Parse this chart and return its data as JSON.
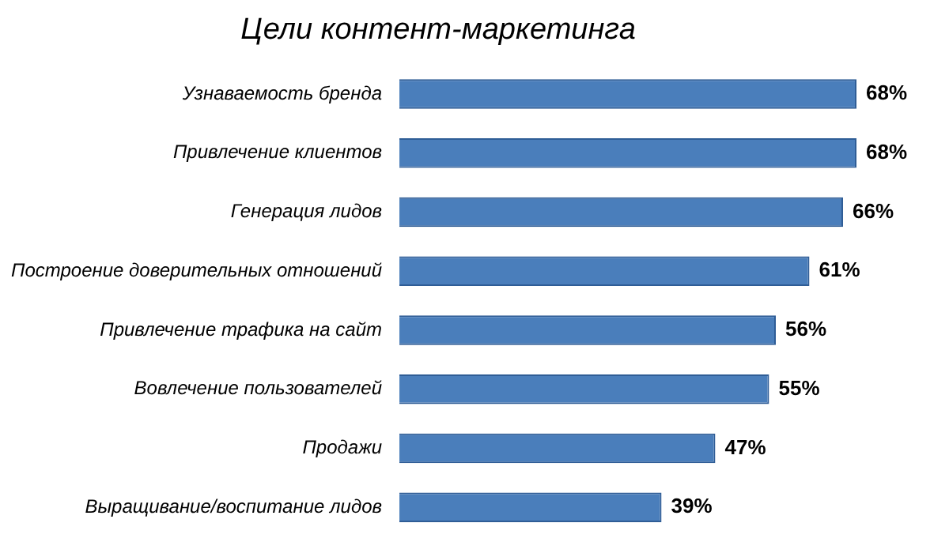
{
  "chart_data": {
    "type": "bar",
    "orientation": "horizontal",
    "title": "Цели контент-маркетинга",
    "categories": [
      "Узнаваемость бренда",
      "Привлечение клиентов",
      "Генерация лидов",
      "Построение доверительных отношений",
      "Привлечение трафика на сайт",
      "Вовлечение пользователей",
      "Продажи",
      "Выращивание/воспитание лидов"
    ],
    "values": [
      68,
      68,
      66,
      61,
      56,
      55,
      47,
      39
    ],
    "value_labels": [
      "68%",
      "68%",
      "66%",
      "61%",
      "56%",
      "55%",
      "47%",
      "39%"
    ],
    "color": "#4a7ebb",
    "legend": false
  }
}
